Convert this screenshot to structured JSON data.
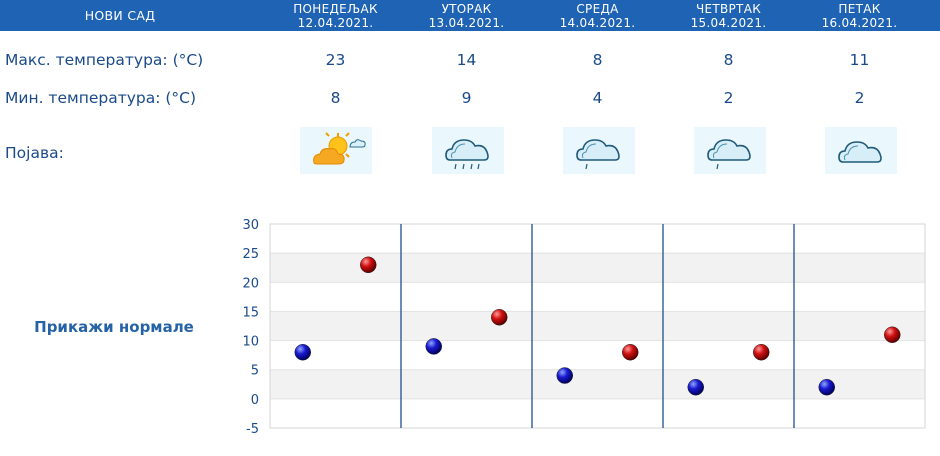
{
  "header": {
    "city": "НОВИ САД",
    "days": [
      {
        "name": "ПОНЕДЕЉАК",
        "date": "12.04.2021."
      },
      {
        "name": "УТОРАК",
        "date": "13.04.2021."
      },
      {
        "name": "СРЕДА",
        "date": "14.04.2021."
      },
      {
        "name": "ЧЕТВРТАК",
        "date": "15.04.2021."
      },
      {
        "name": "ПЕТАК",
        "date": "16.04.2021."
      }
    ]
  },
  "rows": {
    "max_label": "Макс. температура: (°C)",
    "min_label": "Мин. температура: (°C)",
    "phenomenon_label": "Појава:",
    "max": [
      "23",
      "14",
      "8",
      "8",
      "11"
    ],
    "min": [
      "8",
      "9",
      "4",
      "2",
      "2"
    ],
    "icons": [
      "sun-cloud-icon",
      "cloud-rain-icon",
      "cloud-drizzle-icon",
      "cloud-drizzle-icon",
      "cloud-icon"
    ]
  },
  "normals_link": "Прикажи нормале",
  "colors": {
    "header_bg": "#1f63b4",
    "min_marker": "#1010b0",
    "max_marker": "#c81010",
    "text": "#1a4a8a",
    "grid_band": "#f2f2f2",
    "divider": "#1f4f8f"
  },
  "chart_data": {
    "type": "scatter",
    "categories": [
      "12.04.2021.",
      "13.04.2021.",
      "14.04.2021.",
      "15.04.2021.",
      "16.04.2021."
    ],
    "series": [
      {
        "values": [
          8,
          9,
          4,
          2,
          2
        ]
      },
      {
        "values": [
          23,
          14,
          8,
          8,
          11
        ]
      }
    ],
    "ylim": [
      -5,
      30
    ],
    "yticks": [
      "30",
      "25",
      "20",
      "15",
      "10",
      "5",
      "0",
      "-5"
    ],
    "grid": true
  }
}
